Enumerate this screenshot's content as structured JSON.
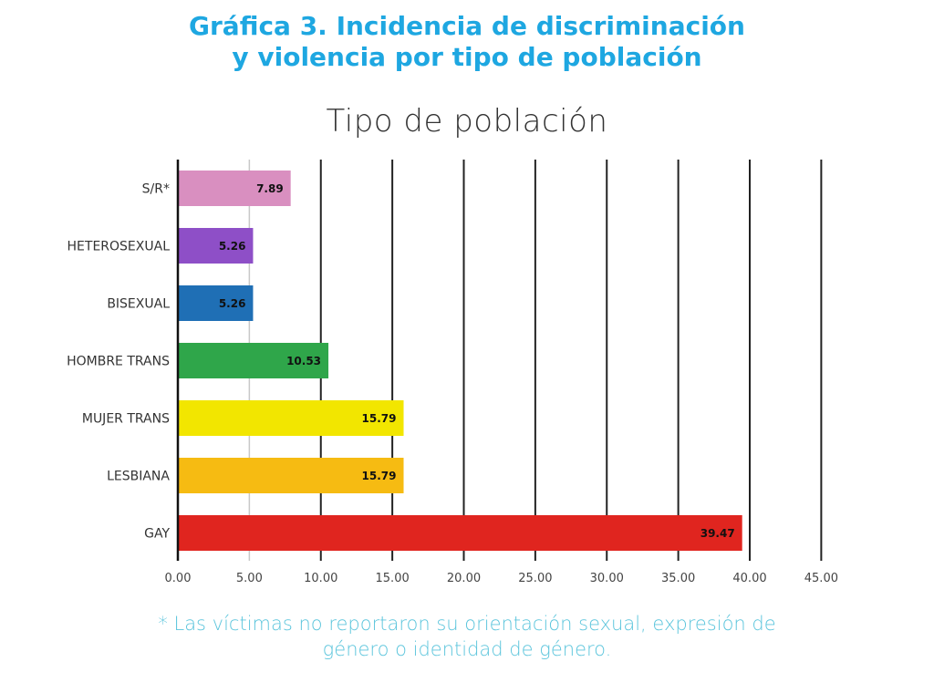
{
  "header": {
    "title_line1": "Gráfica 3. Incidencia de discriminación",
    "title_line2": "y violencia por tipo de población",
    "title_color": "#1ea7e1"
  },
  "footnote": {
    "line1": "* Las víctimas no reportaron su orientación sexual, expresión de",
    "line2": "género o identidad de género.",
    "color": "#5cc5dc"
  },
  "chart_data": {
    "type": "bar",
    "orientation": "horizontal",
    "title": "Tipo de población",
    "xlabel": "",
    "ylabel": "",
    "categories": [
      "S/R*",
      "HETEROSEXUAL",
      "BISEXUAL",
      "HOMBRE TRANS",
      "MUJER TRANS",
      "LESBIANA",
      "GAY"
    ],
    "values": [
      7.89,
      5.26,
      5.26,
      10.53,
      15.79,
      15.79,
      39.47
    ],
    "value_labels": [
      "7.89",
      "5.26",
      "5.26",
      "10.53",
      "15.79",
      "15.79",
      "39.47"
    ],
    "colors": [
      "#d98fc0",
      "#8e4fc7",
      "#1f6fb5",
      "#2fa64a",
      "#f2e600",
      "#f6bb12",
      "#e0251f"
    ],
    "xlim": [
      0,
      45
    ],
    "xticks": [
      0,
      5,
      10,
      15,
      20,
      25,
      30,
      35,
      40,
      45
    ],
    "xtick_labels": [
      "0.00",
      "5.00",
      "10.00",
      "15.00",
      "20.00",
      "25.00",
      "30.00",
      "35.00",
      "40.00",
      "45.00"
    ],
    "grid": "vertical",
    "legend": "none"
  }
}
